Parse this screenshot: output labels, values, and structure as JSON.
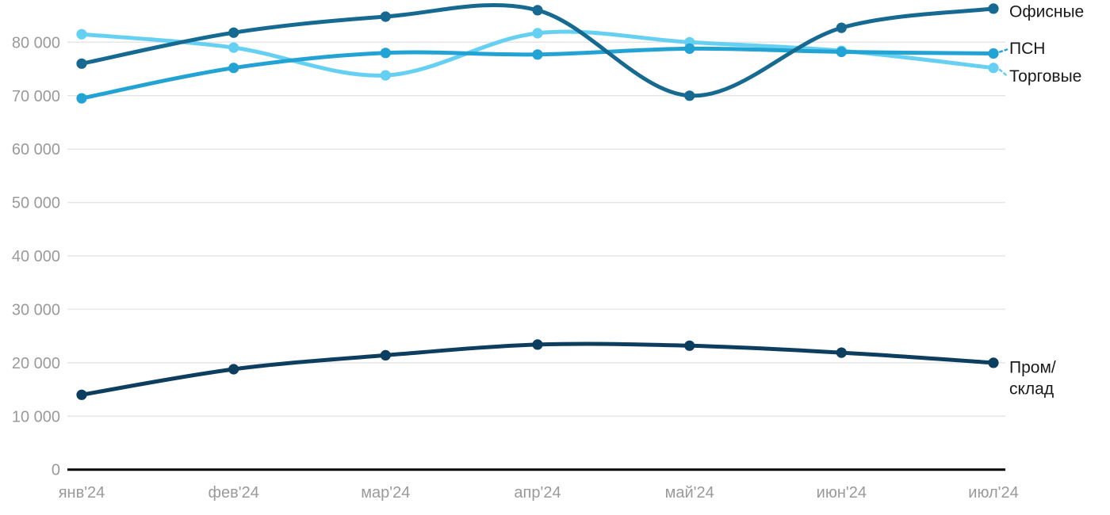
{
  "chart_data": {
    "type": "line",
    "title": "",
    "xlabel": "",
    "ylabel": "",
    "categories": [
      "янв'24",
      "фев'24",
      "мар'24",
      "апр'24",
      "май'24",
      "июн'24",
      "июл'24"
    ],
    "series": [
      {
        "name": "Офисные",
        "label_lines": [
          "Офисные"
        ],
        "color": "#166a92",
        "values": [
          76000,
          81800,
          84800,
          86000,
          70000,
          82700,
          86300
        ]
      },
      {
        "name": "ПСН",
        "label_lines": [
          "ПСН"
        ],
        "color": "#22a3d4",
        "values": [
          69500,
          75200,
          78000,
          77700,
          78800,
          78200,
          77900
        ]
      },
      {
        "name": "Торговые",
        "label_lines": [
          "Торговые"
        ],
        "color": "#66d0f2",
        "values": [
          81500,
          79000,
          73800,
          81700,
          80000,
          78400,
          75200
        ]
      },
      {
        "name": "Пром/склад",
        "label_lines": [
          "Пром/",
          "склад"
        ],
        "color": "#0d3e5f",
        "values": [
          14000,
          18800,
          21400,
          23400,
          23200,
          21900,
          20000
        ]
      }
    ],
    "y_axis": {
      "ticks": [
        {
          "value": 0,
          "label": "0"
        },
        {
          "value": 10000,
          "label": "10 000"
        },
        {
          "value": 20000,
          "label": "20 000"
        },
        {
          "value": 30000,
          "label": "30 000"
        },
        {
          "value": 40000,
          "label": "40 000"
        },
        {
          "value": 50000,
          "label": "50 000"
        },
        {
          "value": 60000,
          "label": "60 000"
        },
        {
          "value": 70000,
          "label": "70 000"
        },
        {
          "value": 80000,
          "label": "80 000"
        }
      ],
      "range": [
        0,
        88000
      ]
    },
    "grid": true,
    "legend_position": "direct-labels-right",
    "colors": {
      "grid": "#e6e6e6",
      "axis": "#000000",
      "tick_text": "#9a9a9a",
      "label_text": "#1a1a1a",
      "background": "#ffffff"
    }
  }
}
